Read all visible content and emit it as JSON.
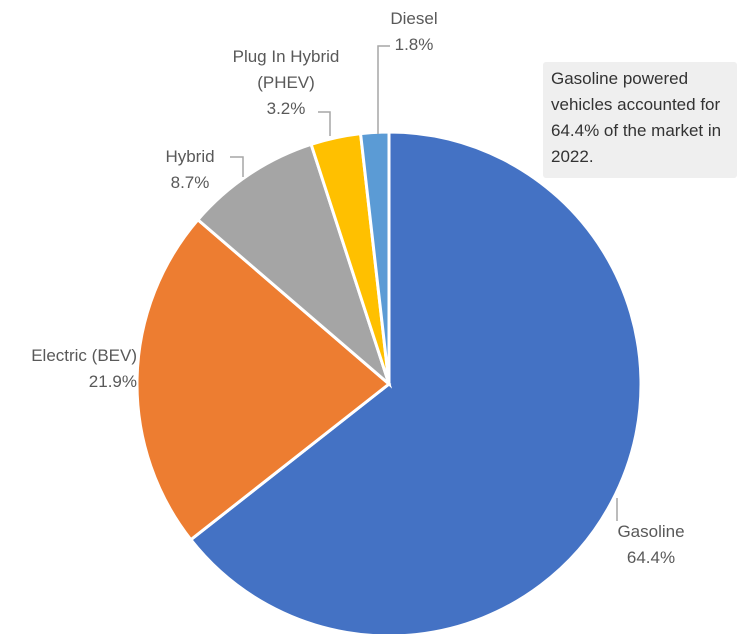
{
  "chart_data": {
    "type": "pie",
    "categories": [
      "Gasoline",
      "Electric (BEV)",
      "Hybrid",
      "Plug In Hybrid (PHEV)",
      "Diesel"
    ],
    "values": [
      64.4,
      21.9,
      8.7,
      3.2,
      1.8
    ],
    "value_labels": [
      "64.4%",
      "21.9%",
      "8.7%",
      "3.2%",
      "1.8%"
    ],
    "colors": [
      "#4472c4",
      "#ed7d31",
      "#a5a5a5",
      "#ffc000",
      "#5b9bd5"
    ],
    "annotation": "Gasoline powered vehicles accounted for 64.4% of the market in 2022."
  }
}
